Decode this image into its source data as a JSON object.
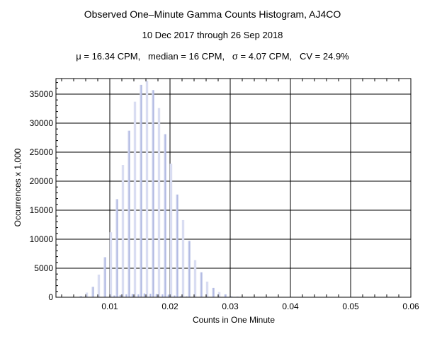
{
  "chart_data": {
    "type": "bar",
    "title": "Observed One–Minute Gamma Counts Histogram, AJ4CO",
    "subtitle": "10 Dec 2017 through 26 Sep 2018",
    "stats_line": "μ = 16.34 CPM,   median = 16 CPM,   σ = 4.07 CPM,   CV = 24.9%",
    "xlabel": "Counts in One Minute",
    "ylabel": "Occurrences x 1,000",
    "xlim": [
      0.001,
      0.06
    ],
    "ylim": [
      0,
      37500
    ],
    "grid": true,
    "x_ticks": [
      "0.01",
      "0.02",
      "0.03",
      "0.04",
      "0.05",
      "0.06"
    ],
    "y_ticks": [
      "0",
      "5000",
      "10000",
      "15000",
      "20000",
      "25000",
      "30000",
      "35000"
    ],
    "colors": {
      "bar": "#b3bbe3",
      "bar_alt": "#d9ddf2",
      "grid": "#000000"
    },
    "series": [
      {
        "x": [
          0.005,
          0.006,
          0.007,
          0.008,
          0.009,
          0.01,
          0.011,
          0.012,
          0.013,
          0.014,
          0.015,
          0.016,
          0.017,
          0.018,
          0.019,
          0.02,
          0.021,
          0.022,
          0.023,
          0.024,
          0.025,
          0.026,
          0.027,
          0.028,
          0.029,
          0.03,
          0.031
        ],
        "values": [
          200,
          800,
          1800,
          3900,
          6900,
          11200,
          16900,
          22800,
          28700,
          33700,
          36600,
          37300,
          35700,
          32600,
          28100,
          23000,
          17700,
          13300,
          9700,
          6400,
          4300,
          2700,
          1600,
          900,
          500,
          200,
          100
        ]
      },
      {
        "x": [
          0.0105,
          0.0115,
          0.0125,
          0.0135,
          0.0145,
          0.0155,
          0.0165,
          0.0175,
          0.0185,
          0.0195,
          0.0205,
          0.0215,
          0.0225
        ],
        "values": [
          300,
          400,
          500,
          550,
          500,
          650,
          600,
          550,
          500,
          450,
          300,
          200,
          150
        ]
      }
    ]
  }
}
